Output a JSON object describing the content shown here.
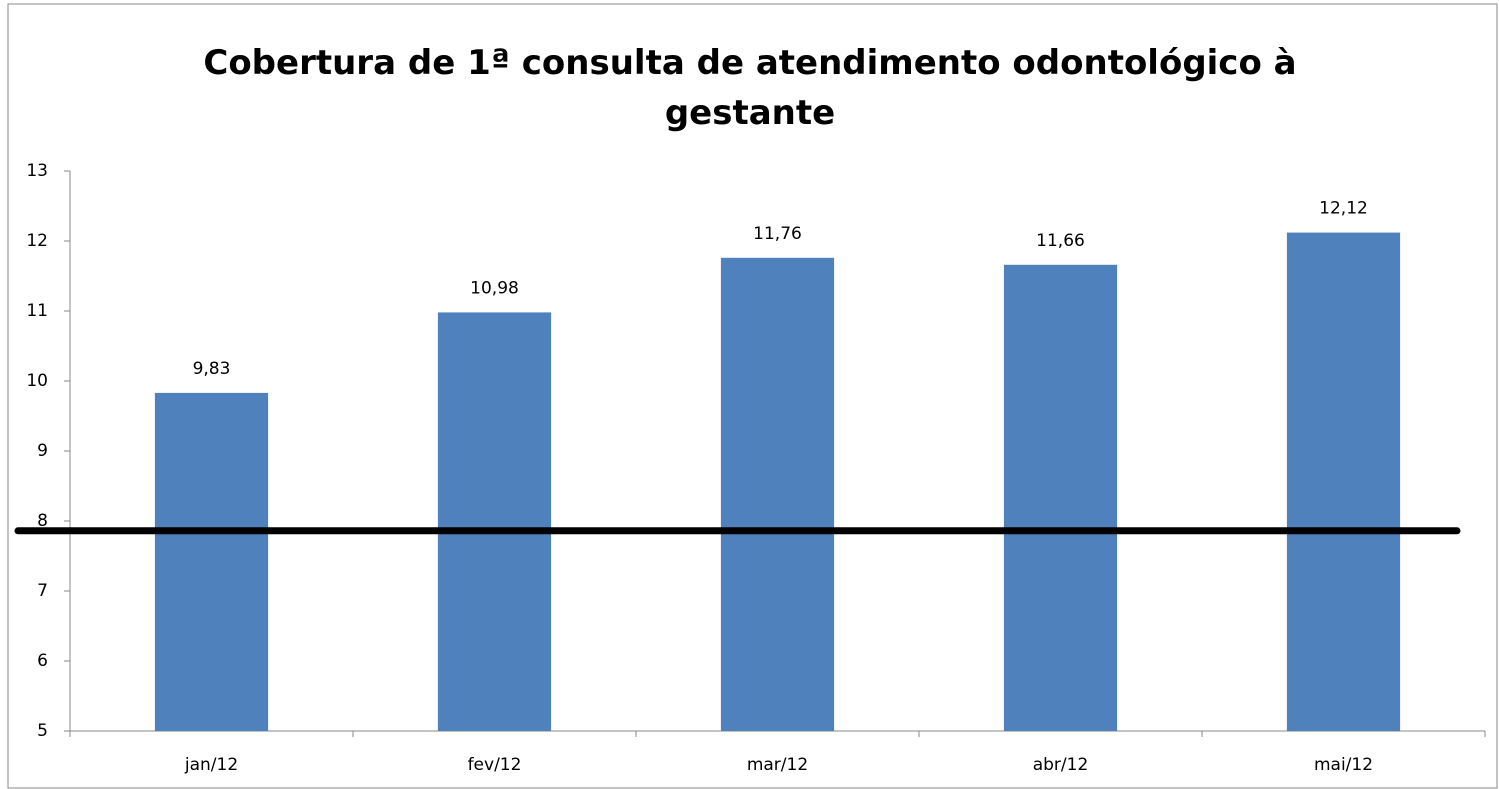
{
  "chart_data": {
    "type": "bar",
    "title": "Cobertura de 1ª consulta de atendimento odontológico à gestante",
    "categories": [
      "jan/12",
      "fev/12",
      "mar/12",
      "abr/12",
      "mai/12"
    ],
    "values": [
      9.83,
      10.98,
      11.76,
      11.66,
      12.12
    ],
    "value_labels": [
      "9,83",
      "10,98",
      "11,76",
      "11,66",
      "12,12"
    ],
    "color": "#4f81bd",
    "reference_line": 7.86,
    "reference_color": "#000000",
    "ylim": [
      5,
      13
    ],
    "yticks": [
      5,
      6,
      7,
      8,
      9,
      10,
      11,
      12,
      13
    ],
    "grid": false
  }
}
